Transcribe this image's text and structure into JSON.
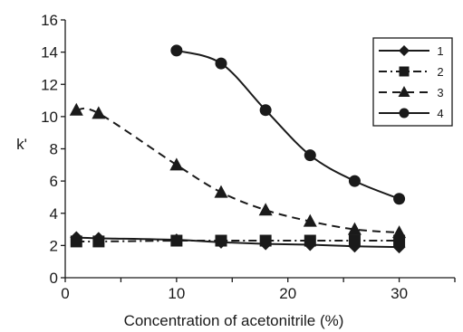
{
  "chart_data": {
    "type": "line",
    "xlabel": "Concentration of acetonitrile (%)",
    "ylabel": "k'",
    "xlim": [
      0,
      35
    ],
    "ylim": [
      0,
      16
    ],
    "x_ticks": [
      0,
      10,
      20,
      30
    ],
    "y_ticks": [
      0,
      2,
      4,
      6,
      8,
      10,
      12,
      14,
      16
    ],
    "grid": false,
    "legend_position": "top-right",
    "series": [
      {
        "name": "1",
        "marker": "diamond",
        "line_style": "solid",
        "x": [
          1,
          3,
          10,
          14,
          18,
          22,
          26,
          30
        ],
        "y": [
          2.5,
          2.45,
          2.35,
          2.2,
          2.1,
          2.05,
          1.95,
          1.9
        ]
      },
      {
        "name": "2",
        "marker": "square",
        "line_style": "dash-dot",
        "x": [
          1,
          3,
          10,
          14,
          18,
          22,
          26,
          30
        ],
        "y": [
          2.25,
          2.25,
          2.3,
          2.3,
          2.3,
          2.3,
          2.3,
          2.3
        ]
      },
      {
        "name": "3",
        "marker": "triangle",
        "line_style": "dashed",
        "x": [
          1,
          3,
          10,
          14,
          18,
          22,
          26,
          30
        ],
        "y": [
          10.4,
          10.2,
          7.0,
          5.3,
          4.2,
          3.5,
          3.0,
          2.8
        ]
      },
      {
        "name": "4",
        "marker": "circle",
        "line_style": "solid",
        "x": [
          10,
          14,
          18,
          22,
          26,
          30
        ],
        "y": [
          14.1,
          13.3,
          10.4,
          7.6,
          6.0,
          4.9
        ]
      }
    ]
  },
  "colors": {
    "line": "#1a1a1a",
    "background": "#ffffff"
  }
}
